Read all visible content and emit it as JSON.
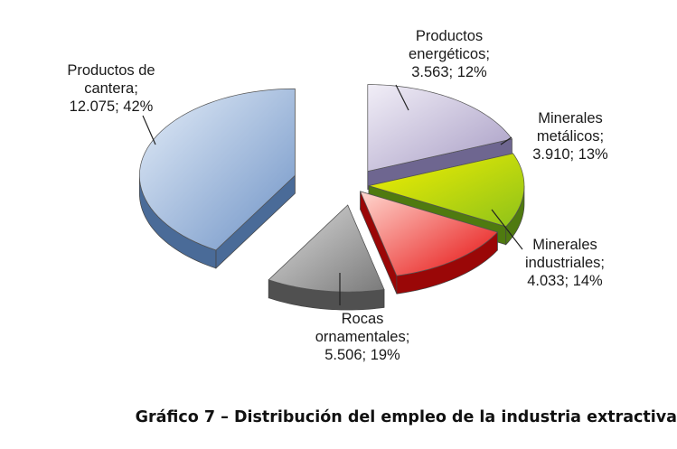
{
  "chart_data": {
    "type": "pie",
    "style": "3d-exploded",
    "slices": [
      {
        "label_lines": [
          "Productos de",
          "cantera;",
          "12.075; 42%"
        ],
        "value": 12075,
        "percent": 42,
        "colors": [
          "#e4edf8",
          "#6f93c6",
          "#4a6b98"
        ]
      },
      {
        "label_lines": [
          "Productos",
          "energéticos;",
          "3.563; 12%"
        ],
        "value": 3563,
        "percent": 12,
        "colors": [
          "#dcdcdc",
          "#7a7a7a",
          "#505050"
        ]
      },
      {
        "label_lines": [
          "Minerales",
          "metálicos;",
          "3.910; 13%"
        ],
        "value": 3910,
        "percent": 13,
        "colors": [
          "#ffd8d0",
          "#e60d0d",
          "#9a0707"
        ]
      },
      {
        "label_lines": [
          "Minerales",
          "industriales;",
          "4.033; 14%"
        ],
        "value": 4033,
        "percent": 14,
        "colors": [
          "#f4f000",
          "#8ec21a",
          "#4f7a10"
        ]
      },
      {
        "label_lines": [
          "Rocas",
          "ornamentales;",
          "5.506; 19%"
        ],
        "value": 5506,
        "percent": 19,
        "colors": [
          "#f1eef7",
          "#a79cc4",
          "#6e6690"
        ]
      }
    ]
  },
  "caption": "Gráfico 7 – Distribución del empleo de la industria extractiva"
}
